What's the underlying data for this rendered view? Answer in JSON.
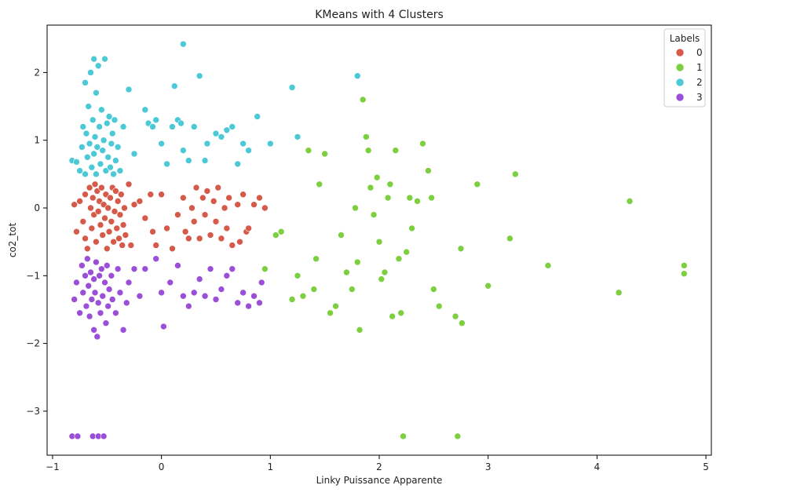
{
  "chart_data": {
    "type": "scatter",
    "title": "KMeans with 4 Clusters",
    "xlabel": "Linky Puissance Apparente",
    "ylabel": "co2_tot",
    "xlim": [
      -1.05,
      5.05
    ],
    "ylim": [
      -3.65,
      2.7
    ],
    "x_ticks": [
      -1,
      0,
      1,
      2,
      3,
      4,
      5
    ],
    "y_ticks": [
      -3,
      -2,
      -1,
      0,
      1,
      2
    ],
    "grid": false,
    "legend": {
      "title": "Labels",
      "placement": "top-right"
    },
    "series": [
      {
        "name": "0",
        "color": "#d65a4a",
        "points": [
          [
            -0.8,
            0.05
          ],
          [
            -0.78,
            -0.35
          ],
          [
            -0.75,
            0.1
          ],
          [
            -0.72,
            -0.2
          ],
          [
            -0.7,
            0.2
          ],
          [
            -0.7,
            -0.45
          ],
          [
            -0.68,
            -0.6
          ],
          [
            -0.66,
            0.3
          ],
          [
            -0.65,
            0.0
          ],
          [
            -0.64,
            -0.3
          ],
          [
            -0.63,
            0.15
          ],
          [
            -0.62,
            -0.1
          ],
          [
            -0.61,
            0.35
          ],
          [
            -0.6,
            -0.5
          ],
          [
            -0.59,
            0.25
          ],
          [
            -0.58,
            -0.05
          ],
          [
            -0.57,
            0.1
          ],
          [
            -0.56,
            -0.25
          ],
          [
            -0.55,
            0.3
          ],
          [
            -0.54,
            -0.4
          ],
          [
            -0.53,
            0.05
          ],
          [
            -0.52,
            -0.15
          ],
          [
            -0.51,
            0.2
          ],
          [
            -0.5,
            -0.6
          ],
          [
            -0.49,
            0.0
          ],
          [
            -0.48,
            -0.35
          ],
          [
            -0.47,
            0.15
          ],
          [
            -0.46,
            -0.2
          ],
          [
            -0.45,
            0.3
          ],
          [
            -0.44,
            -0.5
          ],
          [
            -0.43,
            -0.05
          ],
          [
            -0.42,
            0.25
          ],
          [
            -0.41,
            -0.3
          ],
          [
            -0.4,
            0.1
          ],
          [
            -0.39,
            -0.45
          ],
          [
            -0.38,
            -0.1
          ],
          [
            -0.37,
            0.2
          ],
          [
            -0.36,
            -0.55
          ],
          [
            -0.35,
            -0.25
          ],
          [
            -0.34,
            0.0
          ],
          [
            -0.33,
            -0.4
          ],
          [
            -0.3,
            0.35
          ],
          [
            -0.28,
            -0.55
          ],
          [
            -0.25,
            0.05
          ],
          [
            -0.2,
            0.1
          ],
          [
            -0.15,
            -0.15
          ],
          [
            -0.1,
            0.2
          ],
          [
            -0.08,
            -0.35
          ],
          [
            -0.05,
            -0.55
          ],
          [
            0.0,
            0.2
          ],
          [
            0.05,
            -0.3
          ],
          [
            0.1,
            -0.6
          ],
          [
            0.15,
            -0.1
          ],
          [
            0.2,
            0.15
          ],
          [
            0.22,
            -0.35
          ],
          [
            0.25,
            -0.45
          ],
          [
            0.28,
            0.0
          ],
          [
            0.3,
            -0.2
          ],
          [
            0.32,
            0.3
          ],
          [
            0.35,
            -0.45
          ],
          [
            0.38,
            0.15
          ],
          [
            0.4,
            -0.1
          ],
          [
            0.42,
            0.25
          ],
          [
            0.45,
            -0.4
          ],
          [
            0.48,
            0.1
          ],
          [
            0.5,
            -0.2
          ],
          [
            0.52,
            0.3
          ],
          [
            0.55,
            -0.45
          ],
          [
            0.58,
            0.0
          ],
          [
            0.6,
            -0.3
          ],
          [
            0.62,
            0.15
          ],
          [
            0.65,
            -0.55
          ],
          [
            0.7,
            0.05
          ],
          [
            0.72,
            -0.5
          ],
          [
            0.75,
            0.2
          ],
          [
            0.78,
            -0.35
          ],
          [
            0.8,
            -0.3
          ],
          [
            0.85,
            0.05
          ],
          [
            0.9,
            0.15
          ],
          [
            0.95,
            0.0
          ]
        ]
      },
      {
        "name": "1",
        "color": "#7ccf3e",
        "points": [
          [
            0.95,
            -0.9
          ],
          [
            1.05,
            -0.4
          ],
          [
            1.1,
            -0.35
          ],
          [
            1.2,
            -1.35
          ],
          [
            1.25,
            -1.0
          ],
          [
            1.3,
            -1.3
          ],
          [
            1.35,
            0.85
          ],
          [
            1.4,
            -1.2
          ],
          [
            1.42,
            -0.75
          ],
          [
            1.45,
            0.35
          ],
          [
            1.5,
            0.8
          ],
          [
            1.55,
            -1.55
          ],
          [
            1.6,
            -1.45
          ],
          [
            1.65,
            -0.4
          ],
          [
            1.7,
            -0.95
          ],
          [
            1.75,
            -1.2
          ],
          [
            1.78,
            0.0
          ],
          [
            1.8,
            -0.8
          ],
          [
            1.82,
            -1.8
          ],
          [
            1.85,
            1.6
          ],
          [
            1.88,
            1.05
          ],
          [
            1.9,
            0.85
          ],
          [
            1.92,
            0.3
          ],
          [
            1.95,
            -0.1
          ],
          [
            1.98,
            0.45
          ],
          [
            2.0,
            -0.5
          ],
          [
            2.02,
            -1.05
          ],
          [
            2.05,
            -0.95
          ],
          [
            2.08,
            0.15
          ],
          [
            2.1,
            0.35
          ],
          [
            2.12,
            -1.6
          ],
          [
            2.15,
            0.85
          ],
          [
            2.18,
            -0.75
          ],
          [
            2.2,
            -1.55
          ],
          [
            2.22,
            -3.37
          ],
          [
            2.25,
            -0.65
          ],
          [
            2.28,
            0.15
          ],
          [
            2.3,
            -0.3
          ],
          [
            2.35,
            0.1
          ],
          [
            2.4,
            0.95
          ],
          [
            2.45,
            0.55
          ],
          [
            2.48,
            0.15
          ],
          [
            2.5,
            -1.2
          ],
          [
            2.55,
            -1.45
          ],
          [
            2.7,
            -1.6
          ],
          [
            2.72,
            -3.37
          ],
          [
            2.75,
            -0.6
          ],
          [
            2.76,
            -1.7
          ],
          [
            2.9,
            0.35
          ],
          [
            3.0,
            -1.15
          ],
          [
            3.2,
            -0.45
          ],
          [
            3.25,
            0.5
          ],
          [
            3.55,
            -0.85
          ],
          [
            4.2,
            -1.25
          ],
          [
            4.3,
            0.1
          ],
          [
            4.8,
            -0.85
          ],
          [
            4.8,
            -0.97
          ]
        ]
      },
      {
        "name": "2",
        "color": "#4cc9d6",
        "points": [
          [
            -0.82,
            0.7
          ],
          [
            -0.78,
            0.68
          ],
          [
            -0.75,
            0.55
          ],
          [
            -0.73,
            0.9
          ],
          [
            -0.72,
            1.2
          ],
          [
            -0.7,
            0.5
          ],
          [
            -0.7,
            1.85
          ],
          [
            -0.69,
            1.1
          ],
          [
            -0.68,
            0.75
          ],
          [
            -0.67,
            1.5
          ],
          [
            -0.66,
            0.95
          ],
          [
            -0.65,
            2.0
          ],
          [
            -0.64,
            0.6
          ],
          [
            -0.63,
            1.3
          ],
          [
            -0.62,
            0.8
          ],
          [
            -0.62,
            2.2
          ],
          [
            -0.61,
            1.05
          ],
          [
            -0.6,
            0.5
          ],
          [
            -0.6,
            1.7
          ],
          [
            -0.59,
            0.9
          ],
          [
            -0.58,
            2.1
          ],
          [
            -0.57,
            1.2
          ],
          [
            -0.56,
            0.65
          ],
          [
            -0.55,
            1.45
          ],
          [
            -0.54,
            0.85
          ],
          [
            -0.53,
            1.0
          ],
          [
            -0.52,
            2.2
          ],
          [
            -0.51,
            0.55
          ],
          [
            -0.5,
            1.25
          ],
          [
            -0.49,
            0.75
          ],
          [
            -0.48,
            1.35
          ],
          [
            -0.47,
            0.6
          ],
          [
            -0.46,
            0.95
          ],
          [
            -0.45,
            1.1
          ],
          [
            -0.44,
            0.5
          ],
          [
            -0.43,
            1.3
          ],
          [
            -0.42,
            0.7
          ],
          [
            -0.4,
            0.9
          ],
          [
            -0.38,
            0.55
          ],
          [
            -0.35,
            1.2
          ],
          [
            -0.3,
            1.75
          ],
          [
            -0.25,
            0.8
          ],
          [
            -0.15,
            1.45
          ],
          [
            -0.12,
            1.25
          ],
          [
            -0.08,
            1.2
          ],
          [
            -0.05,
            1.3
          ],
          [
            0.0,
            0.95
          ],
          [
            0.05,
            0.65
          ],
          [
            0.1,
            1.2
          ],
          [
            0.12,
            1.8
          ],
          [
            0.15,
            1.3
          ],
          [
            0.18,
            1.25
          ],
          [
            0.2,
            0.85
          ],
          [
            0.2,
            2.42
          ],
          [
            0.25,
            0.7
          ],
          [
            0.3,
            1.2
          ],
          [
            0.35,
            1.95
          ],
          [
            0.4,
            0.7
          ],
          [
            0.42,
            0.95
          ],
          [
            0.5,
            1.1
          ],
          [
            0.55,
            1.05
          ],
          [
            0.6,
            1.15
          ],
          [
            0.65,
            1.2
          ],
          [
            0.7,
            0.65
          ],
          [
            0.75,
            0.95
          ],
          [
            0.8,
            0.85
          ],
          [
            0.88,
            1.35
          ],
          [
            1.0,
            0.95
          ],
          [
            1.2,
            1.78
          ],
          [
            1.25,
            1.05
          ],
          [
            1.8,
            1.95
          ]
        ]
      },
      {
        "name": "3",
        "color": "#9b4fd8",
        "points": [
          [
            -0.82,
            -3.37
          ],
          [
            -0.77,
            -3.37
          ],
          [
            -0.8,
            -1.35
          ],
          [
            -0.78,
            -1.1
          ],
          [
            -0.75,
            -1.55
          ],
          [
            -0.73,
            -0.85
          ],
          [
            -0.72,
            -1.25
          ],
          [
            -0.7,
            -1.0
          ],
          [
            -0.69,
            -1.45
          ],
          [
            -0.68,
            -0.75
          ],
          [
            -0.67,
            -1.15
          ],
          [
            -0.66,
            -1.6
          ],
          [
            -0.65,
            -0.95
          ],
          [
            -0.64,
            -1.35
          ],
          [
            -0.63,
            -3.37
          ],
          [
            -0.62,
            -1.05
          ],
          [
            -0.62,
            -1.8
          ],
          [
            -0.61,
            -1.25
          ],
          [
            -0.6,
            -0.8
          ],
          [
            -0.59,
            -1.9
          ],
          [
            -0.58,
            -1.4
          ],
          [
            -0.58,
            -3.37
          ],
          [
            -0.57,
            -1.0
          ],
          [
            -0.56,
            -1.55
          ],
          [
            -0.55,
            -0.9
          ],
          [
            -0.54,
            -1.3
          ],
          [
            -0.53,
            -3.37
          ],
          [
            -0.52,
            -1.1
          ],
          [
            -0.51,
            -1.7
          ],
          [
            -0.5,
            -0.85
          ],
          [
            -0.49,
            -1.45
          ],
          [
            -0.48,
            -1.2
          ],
          [
            -0.46,
            -1.0
          ],
          [
            -0.45,
            -1.35
          ],
          [
            -0.42,
            -1.55
          ],
          [
            -0.4,
            -0.9
          ],
          [
            -0.38,
            -1.25
          ],
          [
            -0.35,
            -1.8
          ],
          [
            -0.32,
            -1.4
          ],
          [
            -0.3,
            -1.1
          ],
          [
            -0.25,
            -0.9
          ],
          [
            -0.2,
            -1.3
          ],
          [
            -0.15,
            -0.9
          ],
          [
            -0.05,
            -0.75
          ],
          [
            0.0,
            -1.25
          ],
          [
            0.02,
            -1.75
          ],
          [
            0.08,
            -1.1
          ],
          [
            0.15,
            -0.85
          ],
          [
            0.2,
            -1.3
          ],
          [
            0.25,
            -1.45
          ],
          [
            0.3,
            -1.25
          ],
          [
            0.35,
            -1.05
          ],
          [
            0.4,
            -1.3
          ],
          [
            0.45,
            -0.9
          ],
          [
            0.5,
            -1.35
          ],
          [
            0.55,
            -1.2
          ],
          [
            0.6,
            -1.0
          ],
          [
            0.65,
            -0.9
          ],
          [
            0.7,
            -1.4
          ],
          [
            0.75,
            -1.25
          ],
          [
            0.8,
            -1.45
          ],
          [
            0.85,
            -1.3
          ],
          [
            0.9,
            -1.4
          ],
          [
            0.92,
            -1.1
          ]
        ]
      }
    ]
  }
}
